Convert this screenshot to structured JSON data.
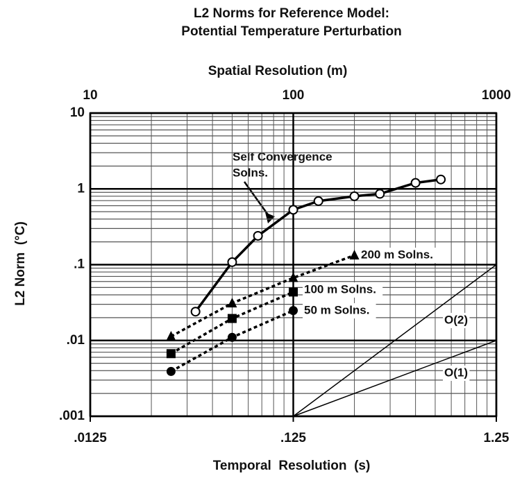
{
  "chart_data": {
    "type": "line",
    "title": "L2 Norms for Reference Model:",
    "subtitle": "Potential Temperature Perturbation",
    "x_label": "Spatial Resolution (m)",
    "x2_label": "Temporal  Resolution  (s)",
    "y_label": "L2 Norm  (°C)",
    "x_log": true,
    "y_log": true,
    "grid": true,
    "xlim": [
      10,
      1000
    ],
    "xticks": [
      10,
      100,
      1000
    ],
    "x2lim": [
      0.0125,
      1.25
    ],
    "x2ticks": [
      {
        "value": 0.0125,
        "label": ".0125"
      },
      {
        "value": 0.125,
        "label": ".125"
      },
      {
        "value": 1.25,
        "label": "1.25"
      }
    ],
    "ylim": [
      0.001,
      10
    ],
    "yticks": [
      {
        "value": 0.001,
        "label": ".001"
      },
      {
        "value": 0.01,
        "label": ".01"
      },
      {
        "value": 0.1,
        "label": ".1"
      },
      1,
      10
    ],
    "annotation": [
      "Self Convergence",
      "Solns."
    ],
    "series": [
      {
        "marker": "open-circle",
        "dash": "solid",
        "color": "#000",
        "x": [
          33,
          50,
          67,
          100,
          133,
          200,
          267,
          400,
          533
        ],
        "values": [
          0.024,
          0.108,
          0.24,
          0.53,
          0.69,
          0.8,
          0.86,
          1.2,
          1.33
        ]
      },
      {
        "name": "200 m Solns.",
        "marker": "triangle",
        "dash": "dotted",
        "color": "#000",
        "x": [
          25,
          50,
          100,
          200
        ],
        "values": [
          0.0113,
          0.031,
          0.067,
          0.133
        ]
      },
      {
        "name": "100 m Solns.",
        "marker": "square",
        "dash": "dotted",
        "color": "#000",
        "x": [
          25,
          50,
          100
        ],
        "values": [
          0.0067,
          0.0195,
          0.0436
        ]
      },
      {
        "name": "50 m Solns.",
        "marker": "circle",
        "dash": "dotted",
        "color": "#000",
        "x": [
          25,
          50,
          100
        ],
        "values": [
          0.0039,
          0.011,
          0.0248
        ]
      },
      {
        "name": "O(2)",
        "marker": "none",
        "dash": "thin",
        "color": "#000",
        "x": [
          100,
          1000
        ],
        "values": [
          0.001,
          0.1
        ]
      },
      {
        "name": "O(1)",
        "marker": "none",
        "dash": "thin",
        "color": "#000",
        "x": [
          100,
          1000
        ],
        "values": [
          0.001,
          0.01
        ]
      }
    ]
  }
}
